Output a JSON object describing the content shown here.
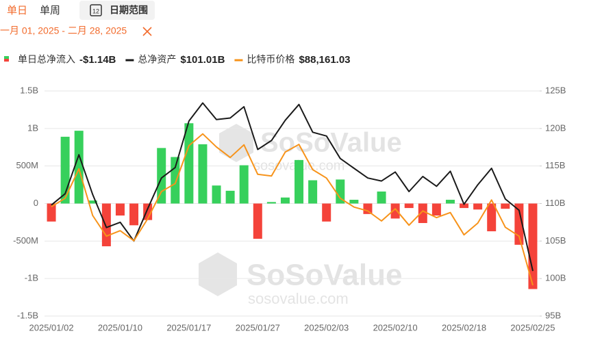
{
  "controls": {
    "tabs": [
      "单日",
      "单周"
    ],
    "calendar_icon": "12",
    "date_range_button": "日期范围",
    "date_range": "一月 01, 2025 - 二月 28, 2025"
  },
  "chart_data": {
    "type": "combo",
    "watermark": [
      "SoSoValue",
      "sosovalue.com"
    ],
    "categories": [
      "2025/01/02",
      null,
      null,
      null,
      null,
      "2025/01/10",
      null,
      null,
      null,
      null,
      "2025/01/17",
      null,
      null,
      null,
      null,
      "2025/01/27",
      null,
      null,
      null,
      null,
      "2025/02/03",
      null,
      null,
      null,
      null,
      "2025/02/10",
      null,
      null,
      null,
      null,
      "2025/02/18",
      null,
      null,
      null,
      null,
      "2025/02/25"
    ],
    "ylim": [
      -1.5,
      1.5
    ],
    "yticks": [
      {
        "value": -1.5,
        "label": "-1.5B"
      },
      {
        "value": -1,
        "label": "-1B"
      },
      {
        "value": -0.5,
        "label": "-500M"
      },
      0,
      {
        "value": 0.5,
        "label": "500M"
      },
      {
        "value": 1,
        "label": "1B"
      },
      {
        "value": 1.5,
        "label": "1.5B"
      }
    ],
    "y2lim": [
      95,
      125
    ],
    "y2ticks": [
      {
        "value": 95,
        "label": "95B"
      },
      {
        "value": 100,
        "label": "100B"
      },
      {
        "value": 105,
        "label": "105B"
      },
      {
        "value": 110,
        "label": "110B"
      },
      {
        "value": 115,
        "label": "115B"
      },
      {
        "value": 120,
        "label": "120B"
      },
      {
        "value": 125,
        "label": "125B"
      }
    ],
    "y3lim": [
      84500,
      111250
    ],
    "grid": true,
    "series": [
      {
        "name": "单日总净流入",
        "type": "bar",
        "legend_value": "-$1.14B",
        "color": "#37d05c",
        "negative_color": "#f4433a",
        "values": [
          -0.24,
          0.89,
          0.97,
          0.04,
          -0.57,
          -0.16,
          -0.29,
          -0.22,
          0.74,
          0.62,
          1.07,
          0.79,
          0.24,
          0.17,
          0.51,
          -0.47,
          0.02,
          0.08,
          0.58,
          0.31,
          -0.24,
          0.32,
          0.05,
          -0.14,
          0.16,
          -0.2,
          -0.06,
          -0.26,
          -0.16,
          0.05,
          -0.06,
          -0.08,
          -0.37,
          -0.07,
          -0.55,
          -1.14
        ]
      },
      {
        "name": "总净资产",
        "type": "line",
        "axis": "y2",
        "legend_value": "$101.01B",
        "color": "#1a1a1a",
        "values": [
          109.8,
          111.3,
          116.5,
          111.2,
          106.8,
          107.5,
          105.0,
          109.3,
          113.4,
          114.8,
          121.0,
          123.4,
          121.2,
          121.4,
          122.9,
          117.2,
          118.4,
          121.1,
          123.2,
          119.5,
          119.0,
          116.0,
          114.7,
          113.4,
          113.0,
          114.2,
          111.6,
          113.6,
          112.3,
          114.3,
          109.9,
          112.5,
          114.7,
          110.6,
          109.1,
          101.01
        ]
      },
      {
        "name": "比特币价格",
        "type": "line",
        "axis": "y3",
        "legend_value": "$88,161.03",
        "color": "#f7931a",
        "values": [
          97500,
          98500,
          102000,
          96450,
          94000,
          94650,
          93450,
          96050,
          99300,
          100250,
          104750,
          106150,
          104600,
          103350,
          104850,
          101350,
          101150,
          104000,
          104900,
          101900,
          100900,
          98500,
          97450,
          97000,
          95800,
          97250,
          95300,
          97000,
          96200,
          96800,
          94150,
          95550,
          98300,
          95050,
          94000,
          88161.03
        ]
      }
    ]
  }
}
